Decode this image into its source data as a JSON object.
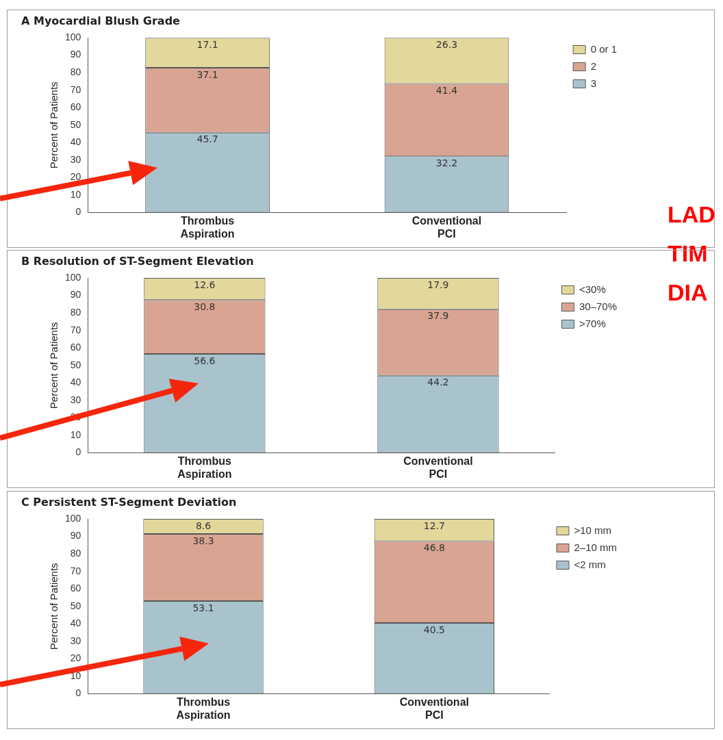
{
  "chart_data": [
    {
      "type": "bar",
      "stacked": true,
      "title": "A  Myocardial Blush Grade",
      "ylabel": "Percent of Patients",
      "categories": [
        "Thrombus Aspiration",
        "Conventional PCI"
      ],
      "ylim": [
        0,
        100
      ],
      "yticks": [
        0,
        10,
        20,
        30,
        40,
        50,
        60,
        70,
        80,
        90,
        100
      ],
      "grid": false,
      "legend": "top right",
      "data_labels": true,
      "annotations": [
        "LAD",
        "TIM",
        "DIA"
      ],
      "series": [
        {
          "name": "3",
          "color": "#a9c3cd",
          "values": [
            45.7,
            32.2
          ]
        },
        {
          "name": "2",
          "color": "#d9a592",
          "values": [
            37.1,
            41.4
          ]
        },
        {
          "name": "0 or 1",
          "color": "#e3d89c",
          "values": [
            17.1,
            26.3
          ]
        }
      ]
    },
    {
      "type": "bar",
      "stacked": true,
      "title": "B  Resolution of ST-Segment Elevation",
      "ylabel": "Percent of Patients",
      "categories": [
        "Thrombus Aspiration",
        "Conventional PCI"
      ],
      "ylim": [
        0,
        100
      ],
      "yticks": [
        0,
        10,
        20,
        30,
        40,
        50,
        60,
        70,
        80,
        90,
        100
      ],
      "grid": false,
      "legend": "top right",
      "data_labels": true,
      "series": [
        {
          "name": ">70%",
          "color": "#a9c3cd",
          "values": [
            56.6,
            44.2
          ]
        },
        {
          "name": "30–70%",
          "color": "#d9a592",
          "values": [
            30.8,
            37.9
          ]
        },
        {
          "name": "<30%",
          "color": "#e3d89c",
          "values": [
            12.6,
            17.9
          ]
        }
      ]
    },
    {
      "type": "bar",
      "stacked": true,
      "title": "C  Persistent ST-Segment Deviation",
      "ylabel": "Percent of Patients",
      "categories": [
        "Thrombus Aspiration",
        "Conventional PCI"
      ],
      "ylim": [
        0,
        100
      ],
      "yticks": [
        0,
        10,
        20,
        30,
        40,
        50,
        60,
        70,
        80,
        90,
        100
      ],
      "grid": false,
      "legend": "top right",
      "data_labels": true,
      "series": [
        {
          "name": "<2 mm",
          "color": "#a9c3cd",
          "values": [
            53.1,
            40.5
          ]
        },
        {
          "name": "2–10 mm",
          "color": "#d9a592",
          "values": [
            38.3,
            46.8
          ]
        },
        {
          "name": ">10 mm",
          "color": "#e3d89c",
          "values": [
            8.6,
            12.7
          ]
        }
      ]
    }
  ]
}
